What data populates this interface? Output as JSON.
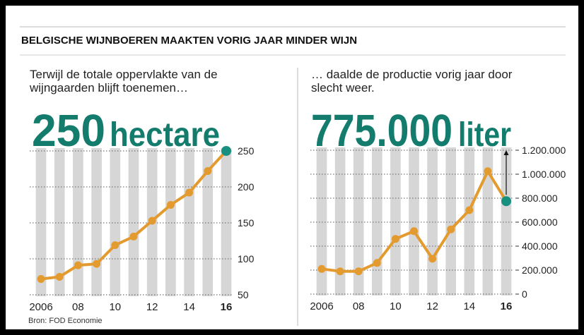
{
  "title": "BELGISCHE WIJNBOEREN MAAKTEN VORIG JAAR MINDER WIJN",
  "source": "Bron: FOD Economie",
  "chart_data": [
    {
      "type": "line",
      "subtitle": [
        "Terwijl de totale oppervlakte van de",
        "wijngaarden blijft toenemen…"
      ],
      "headline": "250",
      "headline_unit": "hectare",
      "categories": [
        "2006",
        null,
        "08",
        null,
        "10",
        null,
        "12",
        null,
        "14",
        null,
        "16"
      ],
      "values": [
        72,
        75,
        91,
        93,
        119,
        131,
        153,
        175,
        192,
        222,
        250
      ],
      "color": "#e39a2f",
      "highlight_color": "#17907f",
      "ylim": [
        50,
        250
      ],
      "yticks": [
        50,
        100,
        150,
        200,
        250
      ],
      "grid": true
    },
    {
      "type": "line",
      "subtitle": [
        "… daalde de productie vorig jaar door",
        "slecht weer."
      ],
      "headline": "775.000",
      "headline_unit": "liter",
      "categories": [
        "2006",
        null,
        "08",
        null,
        "10",
        null,
        "12",
        null,
        "14",
        null,
        "16"
      ],
      "values": [
        210000,
        190000,
        190000,
        260000,
        460000,
        525000,
        295000,
        540000,
        700000,
        1025000,
        775000
      ],
      "color": "#e39a2f",
      "highlight_color": "#17907f",
      "ylim": [
        0,
        1200000
      ],
      "yticks": [
        0,
        {
          "value": 200000,
          "label": "200.000"
        },
        {
          "value": 400000,
          "label": "400.000"
        },
        {
          "value": 600000,
          "label": "600.000"
        },
        {
          "value": 800000,
          "label": "800.000"
        },
        {
          "value": 1000000,
          "label": "1.000.000"
        },
        {
          "value": 1200000,
          "label": "1.200.000"
        }
      ],
      "grid": true
    }
  ]
}
